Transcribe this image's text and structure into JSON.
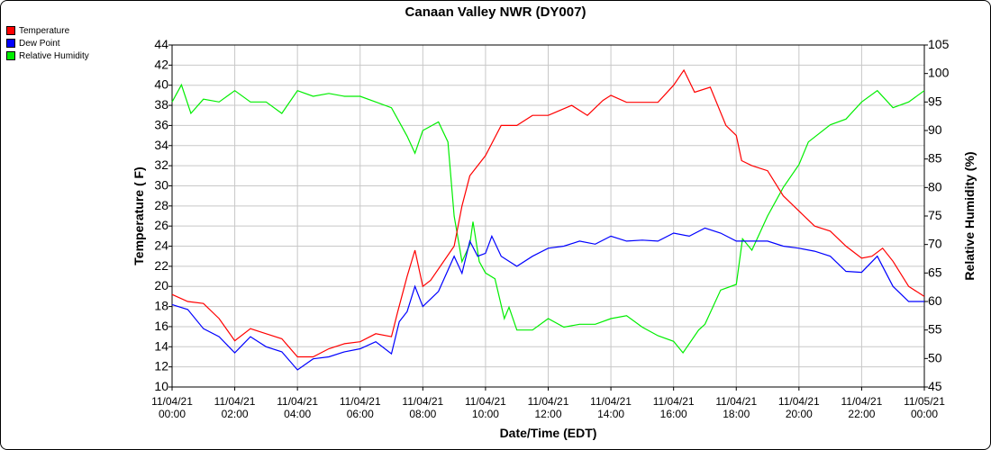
{
  "chart_data": {
    "type": "line",
    "title": "Canaan Valley NWR (DY007)",
    "xlabel": "Date/Time (EDT)",
    "ylabel": "Temperature ( F)",
    "y2label": "Relative Humidity (%)",
    "xlim_hours": [
      0,
      24
    ],
    "ylim": [
      10,
      44
    ],
    "y2lim": [
      45,
      105
    ],
    "grid": true,
    "legend_position": "top-left",
    "x_ticks": [
      {
        "h": 0,
        "date": "11/04/21",
        "time": "00:00"
      },
      {
        "h": 2,
        "date": "11/04/21",
        "time": "02:00"
      },
      {
        "h": 4,
        "date": "11/04/21",
        "time": "04:00"
      },
      {
        "h": 6,
        "date": "11/04/21",
        "time": "06:00"
      },
      {
        "h": 8,
        "date": "11/04/21",
        "time": "08:00"
      },
      {
        "h": 10,
        "date": "11/04/21",
        "time": "10:00"
      },
      {
        "h": 12,
        "date": "11/04/21",
        "time": "12:00"
      },
      {
        "h": 14,
        "date": "11/04/21",
        "time": "14:00"
      },
      {
        "h": 16,
        "date": "11/04/21",
        "time": "16:00"
      },
      {
        "h": 18,
        "date": "11/04/21",
        "time": "18:00"
      },
      {
        "h": 20,
        "date": "11/04/21",
        "time": "20:00"
      },
      {
        "h": 22,
        "date": "11/04/21",
        "time": "22:00"
      },
      {
        "h": 24,
        "date": "11/05/21",
        "time": "00:00"
      }
    ],
    "y_ticks": [
      10,
      12,
      14,
      16,
      18,
      20,
      22,
      24,
      26,
      28,
      30,
      32,
      34,
      36,
      38,
      40,
      42,
      44
    ],
    "y2_ticks": [
      45,
      50,
      55,
      60,
      65,
      70,
      75,
      80,
      85,
      90,
      95,
      100,
      105
    ],
    "series": [
      {
        "name": "Temperature",
        "axis": "left",
        "color": "#ff0000",
        "x": [
          0,
          0.5,
          1,
          1.5,
          2,
          2.5,
          3,
          3.5,
          4,
          4.5,
          5,
          5.5,
          6,
          6.5,
          7,
          7.2,
          7.5,
          7.75,
          8,
          8.25,
          9,
          9.25,
          9.5,
          10,
          10.5,
          11,
          11.5,
          12,
          12.75,
          13.25,
          13.75,
          14,
          14.5,
          15,
          15.5,
          16,
          16.33,
          16.67,
          17.17,
          17.67,
          18,
          18.17,
          18.5,
          19,
          19.5,
          20,
          20.5,
          21,
          21.5,
          22,
          22.33,
          22.67,
          23,
          23.5,
          24
        ],
        "values": [
          19.2,
          18.5,
          18.3,
          16.8,
          14.6,
          15.8,
          15.3,
          14.8,
          13,
          13,
          13.8,
          14.3,
          14.5,
          15.3,
          15,
          17.5,
          21,
          23.6,
          20,
          20.6,
          24,
          28,
          31,
          33,
          36,
          36,
          37,
          37,
          38,
          37,
          38.5,
          39,
          38.3,
          38.3,
          38.3,
          40,
          41.5,
          39.3,
          39.8,
          36,
          35,
          32.5,
          32,
          31.5,
          29,
          27.5,
          26,
          25.5,
          24,
          22.8,
          23,
          23.8,
          22.5,
          20,
          19
        ]
      },
      {
        "name": "Dew Point",
        "axis": "left",
        "color": "#0000ff",
        "x": [
          0,
          0.5,
          1,
          1.5,
          2,
          2.5,
          3,
          3.5,
          4,
          4.5,
          5,
          5.5,
          6,
          6.5,
          7,
          7.25,
          7.5,
          7.75,
          8,
          8.5,
          9,
          9.25,
          9.5,
          9.75,
          10,
          10.2,
          10.5,
          11,
          11.5,
          12,
          12.5,
          13,
          13.5,
          14,
          14.5,
          15,
          15.5,
          16,
          16.5,
          17,
          17.5,
          18,
          18.5,
          19,
          19.5,
          20,
          20.5,
          21,
          21.5,
          22,
          22.5,
          23,
          23.5,
          24
        ],
        "values": [
          18.2,
          17.7,
          15.8,
          15,
          13.4,
          15,
          14,
          13.5,
          11.7,
          12.8,
          13,
          13.5,
          13.8,
          14.5,
          13.3,
          16.5,
          17.5,
          20,
          18,
          19.5,
          23,
          21.3,
          24.5,
          23,
          23.3,
          25,
          23,
          22,
          23,
          23.8,
          24,
          24.5,
          24.2,
          25,
          24.5,
          24.6,
          24.5,
          25.3,
          25,
          25.8,
          25.3,
          24.5,
          24.5,
          24.5,
          24,
          23.8,
          23.5,
          23,
          21.5,
          21.4,
          23,
          20,
          18.5,
          18.5
        ]
      },
      {
        "name": "Relative Humidity",
        "axis": "right",
        "color": "#00ee00",
        "x": [
          0,
          0.3,
          0.6,
          1,
          1.5,
          2,
          2.5,
          3,
          3.5,
          4,
          4.5,
          5,
          5.5,
          6,
          6.5,
          7,
          7.5,
          7.75,
          8,
          8.5,
          8.8,
          9,
          9.25,
          9.5,
          9.6,
          9.8,
          10,
          10.3,
          10.6,
          10.75,
          11,
          11.5,
          12,
          12.5,
          13,
          13.5,
          14,
          14.5,
          15,
          15.5,
          16,
          16.3,
          16.8,
          17,
          17.5,
          18,
          18.2,
          18.5,
          19,
          19.5,
          20,
          20.3,
          21,
          21.5,
          22,
          22.5,
          23,
          23.5,
          24
        ],
        "values": [
          95,
          98,
          93,
          95.5,
          95,
          97,
          95,
          95,
          93,
          97,
          96,
          96.5,
          96,
          96,
          95,
          94,
          89,
          86,
          90,
          91.5,
          88,
          75,
          67,
          70,
          74,
          67,
          65,
          64,
          57,
          59,
          55,
          55,
          57,
          55.5,
          56,
          56,
          57,
          57.5,
          55.5,
          54,
          53,
          51,
          55,
          56,
          62,
          63,
          71,
          69,
          75,
          80,
          84,
          88,
          91,
          92,
          95,
          97,
          94,
          95,
          97
        ]
      }
    ]
  }
}
